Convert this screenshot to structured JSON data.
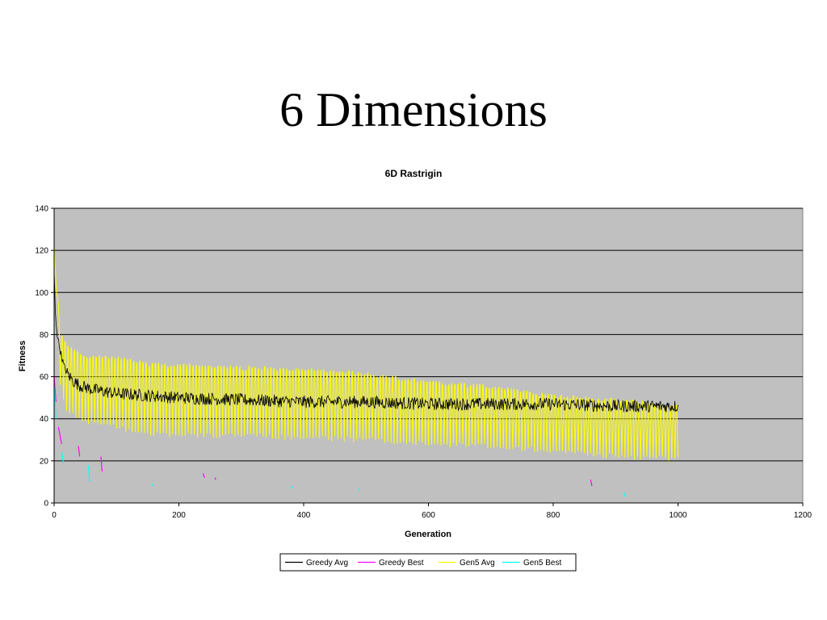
{
  "slide": {
    "title": "6 Dimensions"
  },
  "colors": {
    "plot_background": "#c0c0c0",
    "gridline": "#000000",
    "greedy_avg": "#000000",
    "greedy_best": "#ff00ff",
    "gen5_avg": "#ffff00",
    "gen5_best": "#00ffff"
  },
  "chart_data": {
    "type": "line",
    "title": "6D Rastrigin",
    "xlabel": "Generation",
    "ylabel": "Fitness",
    "xlim": [
      0,
      1200
    ],
    "ylim": [
      0,
      140
    ],
    "x_ticks": [
      0,
      200,
      400,
      600,
      800,
      1000,
      1200
    ],
    "y_ticks": [
      0,
      20,
      40,
      60,
      80,
      100,
      120,
      140
    ],
    "grid": "horizontal major gridlines",
    "legend_position": "bottom",
    "series": [
      {
        "name": "Greedy Avg",
        "color": "#000000",
        "style": "noisy line decaying from ~110 to ~47",
        "x": [
          0,
          2,
          5,
          10,
          15,
          20,
          30,
          40,
          60,
          80,
          100,
          150,
          200,
          300,
          400,
          500,
          600,
          700,
          800,
          900,
          1000
        ],
        "y": [
          110,
          90,
          80,
          72,
          66,
          62,
          58,
          56,
          54,
          53,
          52,
          51,
          50,
          49,
          48,
          48,
          47,
          47,
          47,
          46,
          46
        ]
      },
      {
        "name": "Greedy Best",
        "color": "#ff00ff",
        "style": "sparse short segments",
        "segments": [
          {
            "x": [
              0,
              3
            ],
            "y": [
              60,
              48
            ]
          },
          {
            "x": [
              7,
              12
            ],
            "y": [
              36,
              28
            ]
          },
          {
            "x": [
              39,
              41
            ],
            "y": [
              27,
              22
            ]
          },
          {
            "x": [
              75,
              77
            ],
            "y": [
              22,
              15
            ]
          },
          {
            "x": [
              239,
              241
            ],
            "y": [
              14,
              12
            ]
          },
          {
            "x": [
              258,
              259
            ],
            "y": [
              12,
              11
            ]
          },
          {
            "x": [
              860,
              862
            ],
            "y": [
              11,
              8
            ]
          }
        ]
      },
      {
        "name": "Gen5 Avg",
        "color": "#ffff00",
        "style": "strongly oscillating line within an envelope",
        "upper_envelope": {
          "x": [
            0,
            2,
            5,
            10,
            20,
            40,
            60,
            80,
            100,
            150,
            200,
            300,
            400,
            500,
            600,
            700,
            800,
            900,
            1000
          ],
          "y": [
            124,
            115,
            100,
            88,
            82,
            78,
            77,
            77,
            77,
            74,
            73,
            72,
            71,
            69,
            64,
            62,
            57,
            55,
            52
          ]
        },
        "lower_envelope": {
          "x": [
            0,
            2,
            5,
            10,
            20,
            40,
            60,
            80,
            100,
            150,
            200,
            300,
            400,
            500,
            600,
            700,
            800,
            900,
            1000
          ],
          "y": [
            105,
            80,
            70,
            55,
            44,
            40,
            38,
            37,
            36,
            33,
            32,
            32,
            31,
            30,
            28,
            27,
            25,
            22,
            21
          ]
        },
        "cycle_length": 5,
        "x_end": 1000
      },
      {
        "name": "Gen5 Best",
        "color": "#00ffff",
        "style": "sparse short segments",
        "segments": [
          {
            "x": [
              0,
              3
            ],
            "y": [
              56,
              40
            ]
          },
          {
            "x": [
              12,
              15
            ],
            "y": [
              24,
              19
            ]
          },
          {
            "x": [
              55,
              57
            ],
            "y": [
              18,
              10
            ]
          },
          {
            "x": [
              157,
              159
            ],
            "y": [
              9,
              8
            ]
          },
          {
            "x": [
              380,
              382
            ],
            "y": [
              8,
              7
            ]
          },
          {
            "x": [
              488,
              490
            ],
            "y": [
              7,
              6
            ]
          },
          {
            "x": [
              913,
              916
            ],
            "y": [
              5,
              3
            ]
          }
        ]
      }
    ]
  }
}
